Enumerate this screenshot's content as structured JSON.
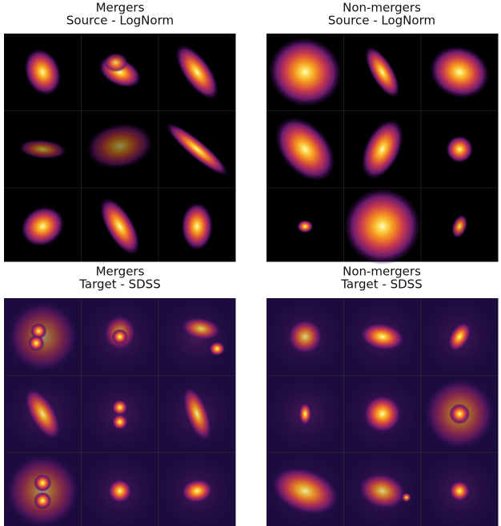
{
  "panels": [
    {
      "title": [
        "Mergers",
        "Source - LogNorm"
      ]
    },
    {
      "title": [
        "Non-mergers",
        "Source - LogNorm"
      ]
    },
    {
      "title": [
        "Mergers",
        "Target - SDSS"
      ]
    },
    {
      "title": [
        "Non-mergers",
        "Target - SDSS"
      ]
    }
  ]
}
